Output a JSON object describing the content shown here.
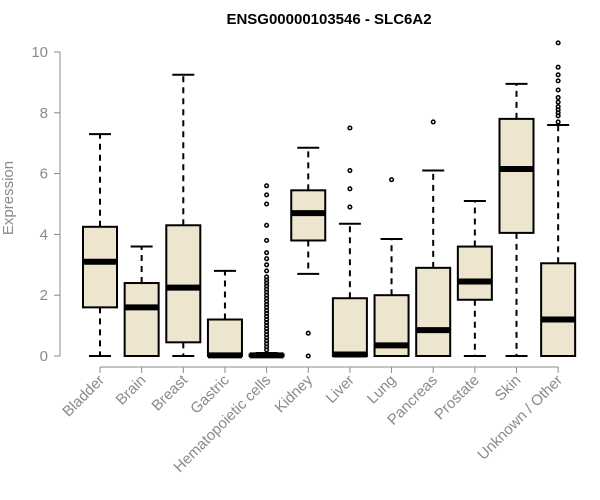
{
  "chart_data": {
    "type": "boxplot",
    "title": "ENSG00000103546 - SLC6A2",
    "xlabel": "",
    "ylabel": "Expression",
    "ylim": [
      0,
      10
    ],
    "yticks": [
      0,
      2,
      4,
      6,
      8,
      10
    ],
    "colors": {
      "box_fill": "#ede5cd",
      "stroke": "#000000",
      "axis": "#8a8a8a"
    },
    "categories": [
      "Bladder",
      "Brain",
      "Breast",
      "Gastric",
      "Hematopoietic cells",
      "Kidney",
      "Liver",
      "Lung",
      "Pancreas",
      "Prostate",
      "Skin",
      "Unknown / Other"
    ],
    "boxes": [
      {
        "name": "Bladder",
        "min": 0,
        "q1": 1.6,
        "median": 3.1,
        "q3": 4.25,
        "max": 7.3,
        "outliers": []
      },
      {
        "name": "Brain",
        "min": 0,
        "q1": 0,
        "median": 1.6,
        "q3": 2.4,
        "max": 3.6,
        "outliers": []
      },
      {
        "name": "Breast",
        "min": 0,
        "q1": 0.45,
        "median": 2.25,
        "q3": 4.3,
        "max": 9.25,
        "outliers": []
      },
      {
        "name": "Gastric",
        "min": 0,
        "q1": 0,
        "median": 0.02,
        "q3": 1.2,
        "max": 2.8,
        "outliers": []
      },
      {
        "name": "Hematopoietic cells",
        "min": 0,
        "q1": 0,
        "median": 0.02,
        "q3": 0.05,
        "max": 0.1,
        "outliers": [
          0.2,
          0.3,
          0.4,
          0.5,
          0.6,
          0.7,
          0.8,
          0.9,
          1.0,
          1.1,
          1.2,
          1.3,
          1.4,
          1.5,
          1.6,
          1.7,
          1.8,
          1.9,
          2.0,
          2.1,
          2.2,
          2.3,
          2.4,
          2.5,
          2.6,
          2.8,
          3.0,
          3.2,
          3.4,
          3.8,
          4.3,
          5.0,
          5.3,
          5.6
        ]
      },
      {
        "name": "Kidney",
        "min": 2.7,
        "q1": 3.8,
        "median": 4.7,
        "q3": 5.45,
        "max": 6.85,
        "outliers": [
          0,
          0.75
        ]
      },
      {
        "name": "Liver",
        "min": 0,
        "q1": 0,
        "median": 0.05,
        "q3": 1.9,
        "max": 4.35,
        "outliers": [
          4.9,
          5.5,
          6.1,
          7.5
        ]
      },
      {
        "name": "Lung",
        "min": 0,
        "q1": 0,
        "median": 0.35,
        "q3": 2.0,
        "max": 3.85,
        "outliers": [
          5.8
        ]
      },
      {
        "name": "Pancreas",
        "min": 0,
        "q1": 0,
        "median": 0.85,
        "q3": 2.9,
        "max": 6.1,
        "outliers": [
          7.7
        ]
      },
      {
        "name": "Prostate",
        "min": 0,
        "q1": 1.85,
        "median": 2.45,
        "q3": 3.6,
        "max": 5.1,
        "outliers": []
      },
      {
        "name": "Skin",
        "min": 0,
        "q1": 4.05,
        "median": 6.15,
        "q3": 7.8,
        "max": 8.95,
        "outliers": []
      },
      {
        "name": "Unknown / Other",
        "min": 0,
        "q1": 0,
        "median": 1.2,
        "q3": 3.05,
        "max": 7.6,
        "outliers": [
          7.7,
          7.9,
          8.0,
          8.1,
          8.2,
          8.35,
          8.5,
          8.75,
          9.05,
          9.25,
          9.5,
          10.3
        ]
      }
    ]
  }
}
